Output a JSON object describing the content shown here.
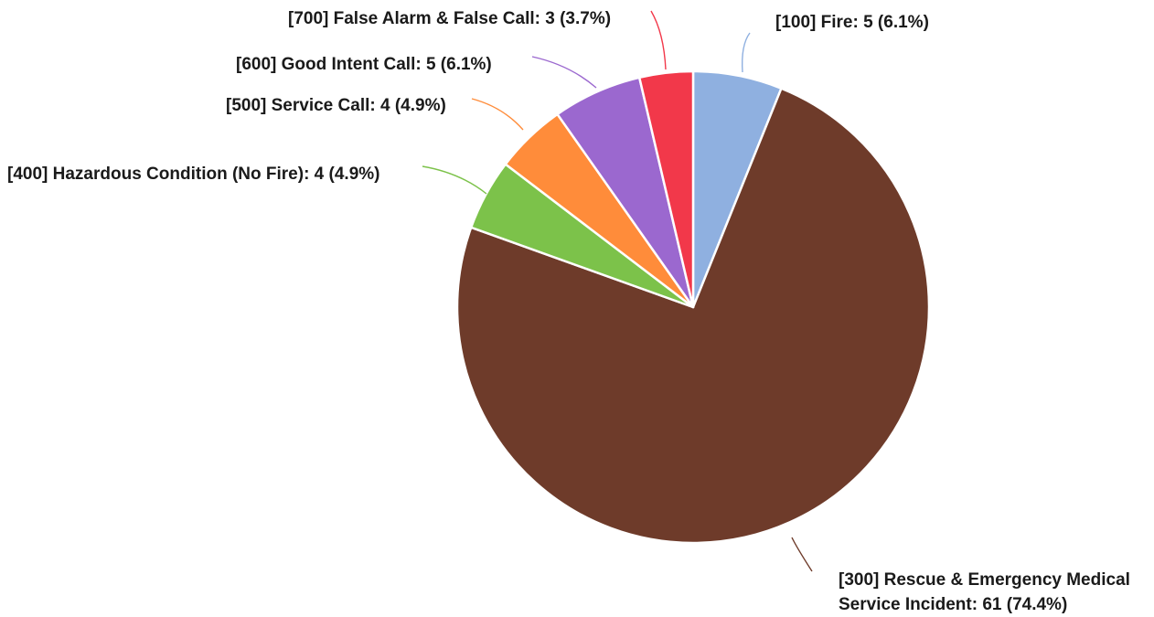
{
  "chart_data": {
    "type": "pie",
    "title": "",
    "legend": "none",
    "slices": [
      {
        "label": "[100] Fire: 5 (6.1%)",
        "value": 5,
        "percent": 6.1,
        "color": "#8fb0e0"
      },
      {
        "label": "[300] Rescue & Emergency Medical Service Incident: 61 (74.4%)",
        "value": 61,
        "percent": 74.4,
        "color": "#6e3b2a"
      },
      {
        "label": "[400] Hazardous Condition (No Fire): 4 (4.9%)",
        "value": 4,
        "percent": 4.9,
        "color": "#7cc24a"
      },
      {
        "label": "[500] Service Call: 4 (4.9%)",
        "value": 4,
        "percent": 4.9,
        "color": "#ff8c3a"
      },
      {
        "label": "[600] Good Intent Call: 5 (6.1%)",
        "value": 5,
        "percent": 6.1,
        "color": "#9b68cf"
      },
      {
        "label": "[700] False Alarm & False Call: 3 (3.7%)",
        "value": 3,
        "percent": 3.7,
        "color": "#f2384a"
      }
    ]
  }
}
